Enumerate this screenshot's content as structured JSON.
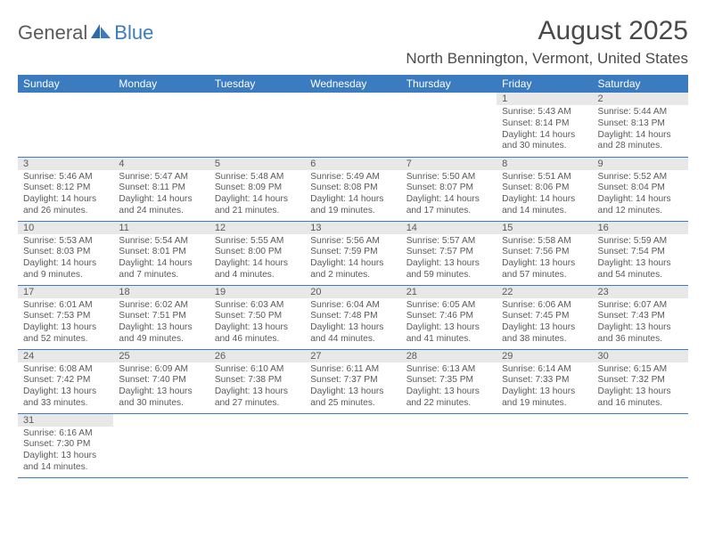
{
  "logo": {
    "part1": "General",
    "part2": "Blue"
  },
  "title": "August 2025",
  "location": "North Bennington, Vermont, United States",
  "colors": {
    "header_bg": "#3b7bbf",
    "header_text": "#ffffff",
    "daynum_bg": "#e8e8e8",
    "text": "#5a5a5a",
    "rule": "#3b7bbf"
  },
  "weekdays": [
    "Sunday",
    "Monday",
    "Tuesday",
    "Wednesday",
    "Thursday",
    "Friday",
    "Saturday"
  ],
  "weeks": [
    [
      null,
      null,
      null,
      null,
      null,
      {
        "n": "1",
        "sr": "5:43 AM",
        "ss": "8:14 PM",
        "dl": "14 hours and 30 minutes."
      },
      {
        "n": "2",
        "sr": "5:44 AM",
        "ss": "8:13 PM",
        "dl": "14 hours and 28 minutes."
      }
    ],
    [
      {
        "n": "3",
        "sr": "5:46 AM",
        "ss": "8:12 PM",
        "dl": "14 hours and 26 minutes."
      },
      {
        "n": "4",
        "sr": "5:47 AM",
        "ss": "8:11 PM",
        "dl": "14 hours and 24 minutes."
      },
      {
        "n": "5",
        "sr": "5:48 AM",
        "ss": "8:09 PM",
        "dl": "14 hours and 21 minutes."
      },
      {
        "n": "6",
        "sr": "5:49 AM",
        "ss": "8:08 PM",
        "dl": "14 hours and 19 minutes."
      },
      {
        "n": "7",
        "sr": "5:50 AM",
        "ss": "8:07 PM",
        "dl": "14 hours and 17 minutes."
      },
      {
        "n": "8",
        "sr": "5:51 AM",
        "ss": "8:06 PM",
        "dl": "14 hours and 14 minutes."
      },
      {
        "n": "9",
        "sr": "5:52 AM",
        "ss": "8:04 PM",
        "dl": "14 hours and 12 minutes."
      }
    ],
    [
      {
        "n": "10",
        "sr": "5:53 AM",
        "ss": "8:03 PM",
        "dl": "14 hours and 9 minutes."
      },
      {
        "n": "11",
        "sr": "5:54 AM",
        "ss": "8:01 PM",
        "dl": "14 hours and 7 minutes."
      },
      {
        "n": "12",
        "sr": "5:55 AM",
        "ss": "8:00 PM",
        "dl": "14 hours and 4 minutes."
      },
      {
        "n": "13",
        "sr": "5:56 AM",
        "ss": "7:59 PM",
        "dl": "14 hours and 2 minutes."
      },
      {
        "n": "14",
        "sr": "5:57 AM",
        "ss": "7:57 PM",
        "dl": "13 hours and 59 minutes."
      },
      {
        "n": "15",
        "sr": "5:58 AM",
        "ss": "7:56 PM",
        "dl": "13 hours and 57 minutes."
      },
      {
        "n": "16",
        "sr": "5:59 AM",
        "ss": "7:54 PM",
        "dl": "13 hours and 54 minutes."
      }
    ],
    [
      {
        "n": "17",
        "sr": "6:01 AM",
        "ss": "7:53 PM",
        "dl": "13 hours and 52 minutes."
      },
      {
        "n": "18",
        "sr": "6:02 AM",
        "ss": "7:51 PM",
        "dl": "13 hours and 49 minutes."
      },
      {
        "n": "19",
        "sr": "6:03 AM",
        "ss": "7:50 PM",
        "dl": "13 hours and 46 minutes."
      },
      {
        "n": "20",
        "sr": "6:04 AM",
        "ss": "7:48 PM",
        "dl": "13 hours and 44 minutes."
      },
      {
        "n": "21",
        "sr": "6:05 AM",
        "ss": "7:46 PM",
        "dl": "13 hours and 41 minutes."
      },
      {
        "n": "22",
        "sr": "6:06 AM",
        "ss": "7:45 PM",
        "dl": "13 hours and 38 minutes."
      },
      {
        "n": "23",
        "sr": "6:07 AM",
        "ss": "7:43 PM",
        "dl": "13 hours and 36 minutes."
      }
    ],
    [
      {
        "n": "24",
        "sr": "6:08 AM",
        "ss": "7:42 PM",
        "dl": "13 hours and 33 minutes."
      },
      {
        "n": "25",
        "sr": "6:09 AM",
        "ss": "7:40 PM",
        "dl": "13 hours and 30 minutes."
      },
      {
        "n": "26",
        "sr": "6:10 AM",
        "ss": "7:38 PM",
        "dl": "13 hours and 27 minutes."
      },
      {
        "n": "27",
        "sr": "6:11 AM",
        "ss": "7:37 PM",
        "dl": "13 hours and 25 minutes."
      },
      {
        "n": "28",
        "sr": "6:13 AM",
        "ss": "7:35 PM",
        "dl": "13 hours and 22 minutes."
      },
      {
        "n": "29",
        "sr": "6:14 AM",
        "ss": "7:33 PM",
        "dl": "13 hours and 19 minutes."
      },
      {
        "n": "30",
        "sr": "6:15 AM",
        "ss": "7:32 PM",
        "dl": "13 hours and 16 minutes."
      }
    ],
    [
      {
        "n": "31",
        "sr": "6:16 AM",
        "ss": "7:30 PM",
        "dl": "13 hours and 14 minutes."
      },
      null,
      null,
      null,
      null,
      null,
      null
    ]
  ],
  "labels": {
    "sunrise": "Sunrise: ",
    "sunset": "Sunset: ",
    "daylight": "Daylight: "
  }
}
